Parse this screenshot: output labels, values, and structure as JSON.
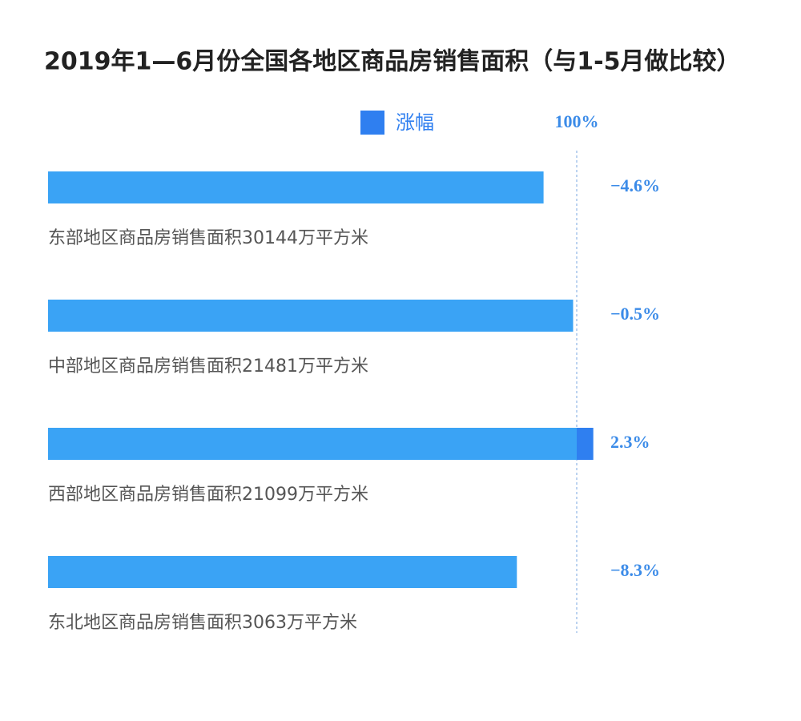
{
  "chart_data": {
    "type": "bar",
    "title": "2019年1—6月份全国各地区商品房销售面积（与1-5月做比较）",
    "categories": [
      "东部地区商品房销售面积30144万平方米",
      "中部地区商品房销售面积21481万平方米",
      "西部地区商品房销售面积21099万平方米",
      "东北地区商品房销售面积3063万平方米"
    ],
    "series": [
      {
        "name": "涨幅",
        "color": "#2f7ff0",
        "values": [
          -4.6,
          -0.5,
          2.3,
          -8.3
        ],
        "value_labels": [
          "−4.6%",
          "−0.5%",
          "2.3%",
          "−8.3%"
        ]
      }
    ],
    "base_color": "#3aa3f5",
    "reference_label": "100%"
  }
}
